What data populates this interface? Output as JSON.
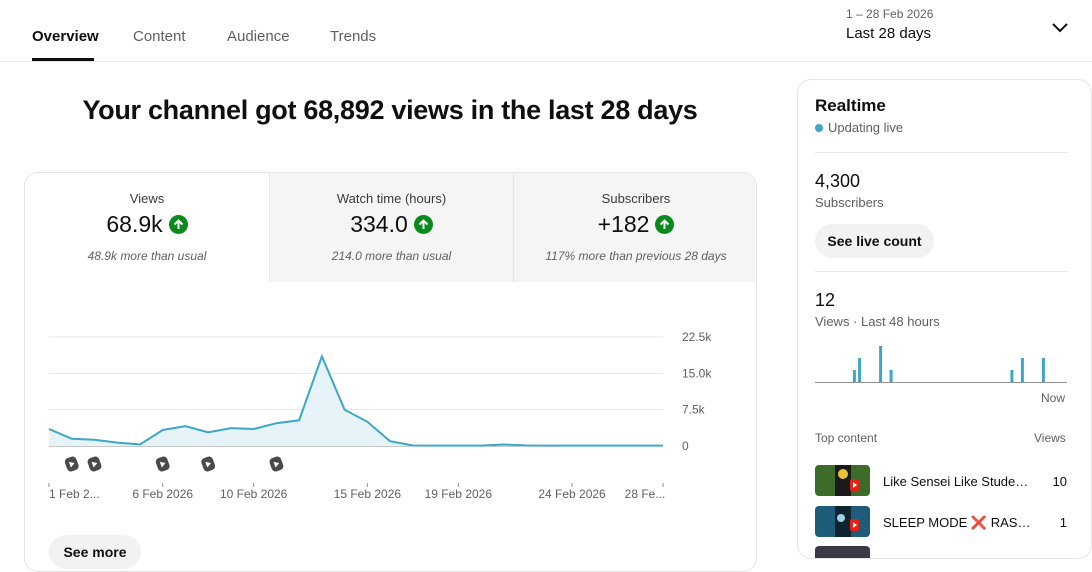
{
  "tabs": [
    {
      "label": "Overview",
      "active": true
    },
    {
      "label": "Content",
      "active": false
    },
    {
      "label": "Audience",
      "active": false
    },
    {
      "label": "Trends",
      "active": false
    }
  ],
  "date_picker": {
    "range": "1 – 28 Feb 2026",
    "label": "Last 28 days"
  },
  "headline": "Your channel got 68,892 views in the last 28 days",
  "metrics": [
    {
      "label": "Views",
      "value": "68.9k",
      "note": "48.9k more than usual"
    },
    {
      "label": "Watch time (hours)",
      "value": "334.0",
      "note": "214.0 more than usual"
    },
    {
      "label": "Subscribers",
      "value": "+182",
      "note": "117% more than previous 28 days"
    }
  ],
  "see_more": "See more",
  "chart_data": {
    "type": "area",
    "x": [
      "1 Feb",
      "2 Feb",
      "3 Feb",
      "4 Feb",
      "5 Feb",
      "6 Feb",
      "7 Feb",
      "8 Feb",
      "9 Feb",
      "10 Feb",
      "11 Feb",
      "12 Feb",
      "13 Feb",
      "14 Feb",
      "15 Feb",
      "16 Feb",
      "17 Feb",
      "18 Feb",
      "19 Feb",
      "20 Feb",
      "21 Feb",
      "22 Feb",
      "23 Feb",
      "24 Feb",
      "25 Feb",
      "26 Feb",
      "27 Feb",
      "28 Feb"
    ],
    "values": [
      3500,
      1500,
      1300,
      700,
      300,
      3300,
      4100,
      2800,
      3700,
      3500,
      4700,
      5300,
      18500,
      7500,
      5000,
      1000,
      100,
      80,
      80,
      80,
      300,
      100,
      80,
      80,
      80,
      80,
      80,
      80
    ],
    "ylim": [
      0,
      22500
    ],
    "yticks": [
      "22.5k",
      "15.0k",
      "7.5k",
      "0"
    ],
    "xtick_labels": [
      "1 Feb 2...",
      "6 Feb 2026",
      "10 Feb 2026",
      "15 Feb 2026",
      "19 Feb 2026",
      "24 Feb 2026",
      "28 Fe..."
    ],
    "xtick_index": [
      0,
      5,
      9,
      14,
      18,
      23,
      27
    ],
    "marker_days": [
      1,
      2,
      5,
      7,
      10
    ],
    "marker_icon": "shorts-icon",
    "color": "#3ea6c9",
    "grid": true
  },
  "realtime": {
    "title": "Realtime",
    "status": "Updating live",
    "subscribers": {
      "value": "4,300",
      "label": "Subscribers"
    },
    "live_button": "See live count",
    "views": {
      "value": "12",
      "label": "Views · Last 48 hours"
    },
    "spark_values": [
      0,
      0,
      0,
      0,
      0,
      0,
      0,
      1,
      2,
      0,
      0,
      0,
      3,
      0,
      1,
      0,
      0,
      0,
      0,
      0,
      0,
      0,
      0,
      0,
      0,
      0,
      0,
      0,
      0,
      0,
      0,
      0,
      0,
      0,
      0,
      0,
      0,
      1,
      0,
      2,
      0,
      0,
      0,
      2,
      0,
      0,
      0,
      0
    ],
    "now_label": "Now",
    "top_content_label": "Top content",
    "top_content_views_label": "Views",
    "top_content": [
      {
        "title": "Like Sensei Like Studen...",
        "views": "10"
      },
      {
        "title": "SLEEP MODE ❌ RASEN...",
        "views": "1"
      }
    ]
  },
  "colors": {
    "accent": "#3ea6c9",
    "up_badge": "#0a8a1c"
  }
}
